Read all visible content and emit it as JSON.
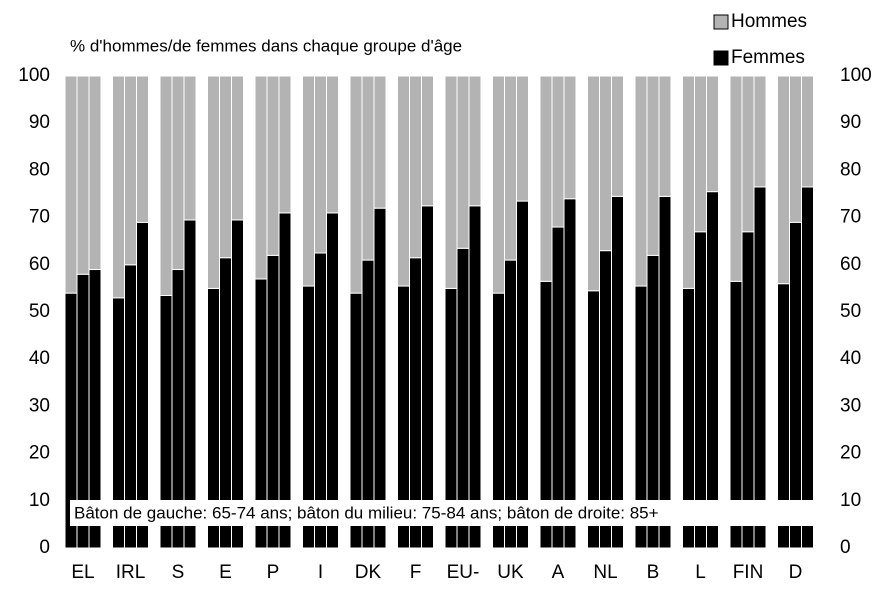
{
  "chart_data": {
    "type": "grouped-stacked-bar",
    "title": "% d'hommes/de femmes dans chaque groupe d'âge",
    "annotation": "Bâton de gauche: 65-74 ans; bâton du milieu: 75-84 ans; bâton de droite: 85+",
    "categories": [
      "EL",
      "IRL",
      "S",
      "E",
      "P",
      "I",
      "DK",
      "F",
      "EU-",
      "UK",
      "A",
      "NL",
      "B",
      "L",
      "FIN",
      "D"
    ],
    "series": [
      {
        "name": "Femmes",
        "color": "#000000",
        "values": [
          [
            54,
            58,
            59
          ],
          [
            53,
            60,
            69
          ],
          [
            53.5,
            59,
            69.5
          ],
          [
            55,
            61.5,
            69.5
          ],
          [
            57,
            62,
            71
          ],
          [
            55.5,
            62.5,
            71
          ],
          [
            54,
            61,
            72
          ],
          [
            55.5,
            61.5,
            72.5
          ],
          [
            55,
            63.5,
            72.5
          ],
          [
            54,
            61,
            73.5
          ],
          [
            56.5,
            68,
            74
          ],
          [
            54.5,
            63,
            74.5
          ],
          [
            55.5,
            62,
            74.5
          ],
          [
            55,
            67,
            75.5
          ],
          [
            56.5,
            67,
            76.5
          ],
          [
            56,
            69,
            76.5
          ]
        ]
      },
      {
        "name": "Hommes",
        "color": "#b3b3b3",
        "values": [
          [
            46,
            42,
            41
          ],
          [
            47,
            40,
            31
          ],
          [
            46.5,
            41,
            30.5
          ],
          [
            45,
            38.5,
            30.5
          ],
          [
            43,
            38,
            29
          ],
          [
            44.5,
            37.5,
            29
          ],
          [
            46,
            39,
            28
          ],
          [
            44.5,
            38.5,
            27.5
          ],
          [
            45,
            36.5,
            27.5
          ],
          [
            46,
            39,
            26.5
          ],
          [
            43.5,
            32,
            26
          ],
          [
            45.5,
            37,
            25.5
          ],
          [
            44.5,
            38,
            25.5
          ],
          [
            45,
            33,
            24.5
          ],
          [
            43.5,
            33,
            23.5
          ],
          [
            44,
            31,
            23.5
          ]
        ]
      }
    ],
    "legend": [
      "Hommes",
      "Femmes"
    ],
    "ylim": [
      0,
      100
    ],
    "yticks": [
      0,
      10,
      20,
      30,
      40,
      50,
      60,
      70,
      80,
      90,
      100
    ],
    "y2lim": [
      0,
      100
    ],
    "y2ticks": [
      0,
      10,
      20,
      30,
      40,
      50,
      60,
      70,
      80,
      90,
      100
    ]
  }
}
